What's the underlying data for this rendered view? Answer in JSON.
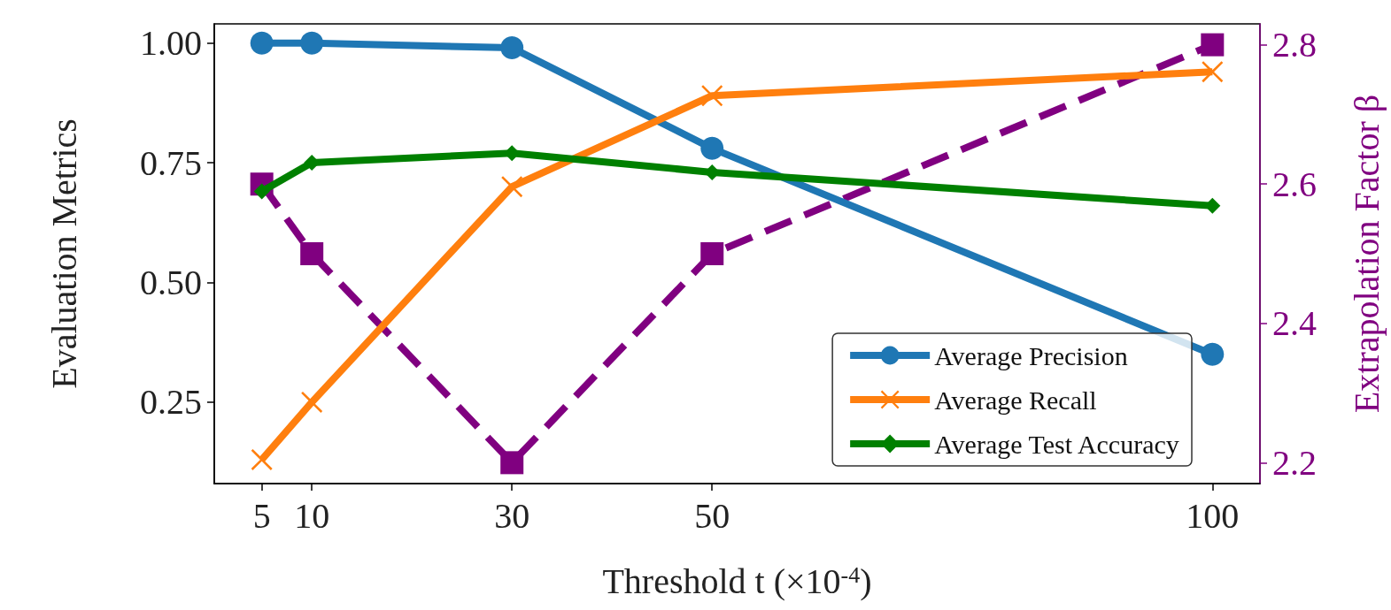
{
  "chart_data": {
    "type": "line",
    "xlabel": "Threshold t (×10$^{-4}$)",
    "ylabel": "Evaluation Metrics",
    "y2label": "Extrapolation Factor β",
    "x": [
      5,
      10,
      30,
      50,
      100
    ],
    "series": [
      {
        "name": "Average Precision",
        "color": "#1f77b4",
        "marker": "circle",
        "values": [
          1.0,
          1.0,
          0.99,
          0.78,
          0.35
        ]
      },
      {
        "name": "Average Recall",
        "color": "#ff7f0e",
        "marker": "cross",
        "values": [
          0.13,
          0.25,
          0.7,
          0.89,
          0.94
        ]
      },
      {
        "name": "Average Test Accuracy",
        "color": "#008000",
        "marker": "diamond",
        "values": [
          0.69,
          0.75,
          0.77,
          0.73,
          0.66
        ]
      },
      {
        "color": "#800080",
        "marker": "square",
        "line_style": "dashed",
        "axis": "y2",
        "values": [
          2.6,
          2.5,
          2.2,
          2.5,
          2.8
        ]
      }
    ],
    "xlim": [
      0.25,
      104.75
    ],
    "xticks": [
      5,
      10,
      30,
      50,
      100
    ],
    "ylim": [
      0.08,
      1.04
    ],
    "yticks": [
      {
        "value": 0.25,
        "label": "0.25"
      },
      {
        "value": 0.5,
        "label": "0.50"
      },
      {
        "value": 0.75,
        "label": "0.75"
      },
      {
        "value": 1.0,
        "label": "1.00"
      }
    ],
    "y2lim": [
      2.17,
      2.83
    ],
    "y2ticks": [
      2.2,
      2.4,
      2.6,
      2.8
    ],
    "grid": false,
    "legend": "bottom right"
  }
}
